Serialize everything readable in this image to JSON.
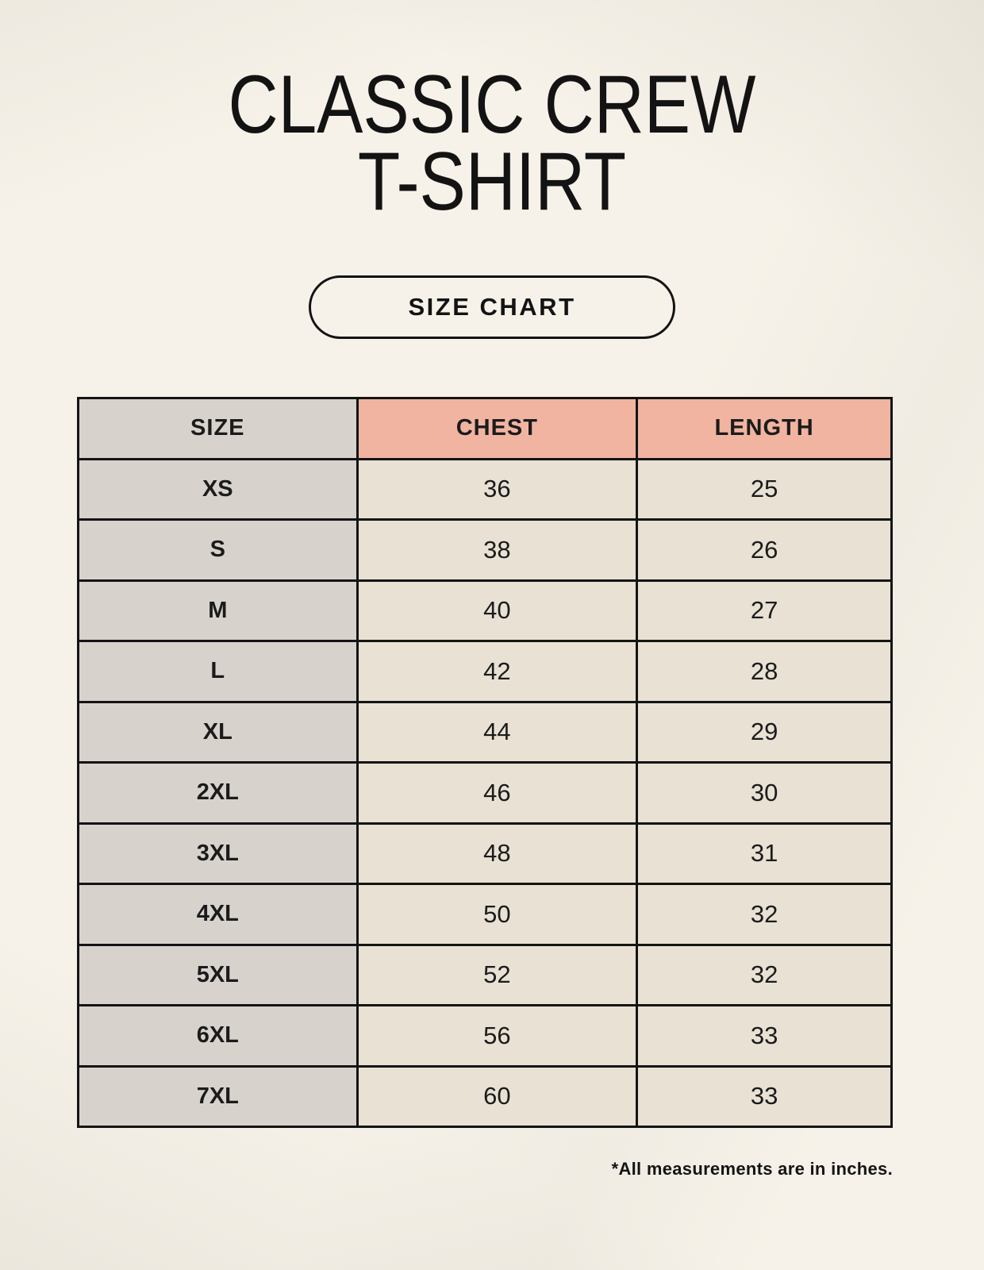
{
  "title": {
    "line1": "CLASSIC CREW",
    "line2": "T-SHIRT"
  },
  "size_chart_button": {
    "label": "SIZE CHART"
  },
  "footnote": "*All measurements are in inches.",
  "colors": {
    "page_background": "#f6f2e9",
    "accent_header": "#f0b4a1",
    "size_column": "#d8d2cd",
    "data_cell": "#e8e1d4",
    "border_ink": "#141414"
  },
  "chart_data": {
    "type": "table",
    "title": "CLASSIC CREW T-SHIRT",
    "units": "inches",
    "columns": [
      "SIZE",
      "CHEST",
      "LENGTH"
    ],
    "rows": [
      {
        "size": "XS",
        "chest": 36,
        "length": 25
      },
      {
        "size": "S",
        "chest": 38,
        "length": 26
      },
      {
        "size": "M",
        "chest": 40,
        "length": 27
      },
      {
        "size": "L",
        "chest": 42,
        "length": 28
      },
      {
        "size": "XL",
        "chest": 44,
        "length": 29
      },
      {
        "size": "2XL",
        "chest": 46,
        "length": 30
      },
      {
        "size": "3XL",
        "chest": 48,
        "length": 31
      },
      {
        "size": "4XL",
        "chest": 50,
        "length": 32
      },
      {
        "size": "5XL",
        "chest": 52,
        "length": 32
      },
      {
        "size": "6XL",
        "chest": 56,
        "length": 33
      },
      {
        "size": "7XL",
        "chest": 60,
        "length": 33
      }
    ]
  }
}
